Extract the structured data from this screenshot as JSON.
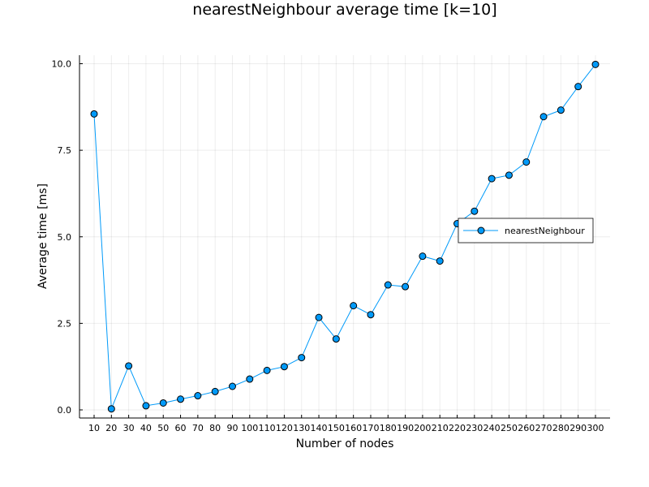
{
  "chart_data": {
    "type": "line",
    "title": "nearestNeighbour average time [k=10]",
    "xlabel": "Number of nodes",
    "ylabel": "Average time [ms]",
    "x": [
      10,
      20,
      30,
      40,
      50,
      60,
      70,
      80,
      90,
      100,
      110,
      120,
      130,
      140,
      150,
      160,
      170,
      180,
      190,
      200,
      210,
      220,
      230,
      240,
      250,
      260,
      270,
      280,
      290,
      300
    ],
    "series": [
      {
        "name": "nearestNeighbour",
        "values": [
          8.55,
          0.03,
          1.27,
          0.12,
          0.2,
          0.31,
          0.41,
          0.53,
          0.68,
          0.89,
          1.14,
          1.25,
          1.51,
          2.67,
          2.05,
          3.01,
          2.75,
          3.61,
          3.56,
          4.44,
          4.3,
          5.38,
          5.74,
          6.68,
          6.78,
          7.16,
          8.47,
          8.66,
          9.34,
          9.98
        ],
        "color": "#009AF9"
      }
    ],
    "xticks": [
      "10",
      "20",
      "30",
      "40",
      "50",
      "60",
      "70",
      "80",
      "90",
      "100",
      "110",
      "120",
      "130",
      "140",
      "150",
      "160",
      "170",
      "180",
      "190",
      "200",
      "210",
      "220",
      "230",
      "240",
      "250",
      "260",
      "270",
      "280",
      "290",
      "300"
    ],
    "yticks": [
      "0.0",
      "2.5",
      "5.0",
      "7.5",
      "10.0"
    ],
    "xlim": [
      10,
      300
    ],
    "ylim": [
      0,
      10
    ],
    "grid": true,
    "legend_position": "right"
  }
}
